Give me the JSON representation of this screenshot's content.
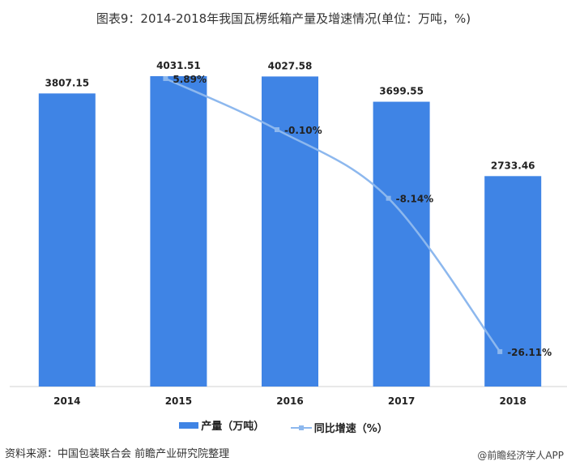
{
  "chart_data": {
    "type": "bar",
    "title": "图表9：2014-2018年我国瓦楞纸箱产量及增速情况(单位：万吨，%)",
    "categories": [
      "2014",
      "2015",
      "2016",
      "2017",
      "2018"
    ],
    "series": [
      {
        "name": "产量（万吨）",
        "type": "bar",
        "axis": "left",
        "values": [
          3807.15,
          4031.51,
          4027.58,
          3699.55,
          2733.46
        ],
        "labels": [
          "3807.15",
          "4031.51",
          "4027.58",
          "3699.55",
          "2733.46"
        ],
        "color": "#3f84e5"
      },
      {
        "name": "同比增速（%）",
        "type": "line",
        "axis": "right",
        "values": [
          null,
          5.89,
          -0.1,
          -8.14,
          -26.11
        ],
        "labels": [
          "",
          "5.89%",
          "-0.10%",
          "-8.14%",
          "-26.11%"
        ],
        "color": "#8db8ee"
      }
    ],
    "ylim": [
      0,
      4600
    ],
    "y2lim": [
      -30.2,
      11.3
    ],
    "grid": false,
    "legend": "bottom"
  },
  "source": "资料来源：中国包装联合会 前瞻产业研究院整理",
  "credit": "@前瞻经济学人APP"
}
